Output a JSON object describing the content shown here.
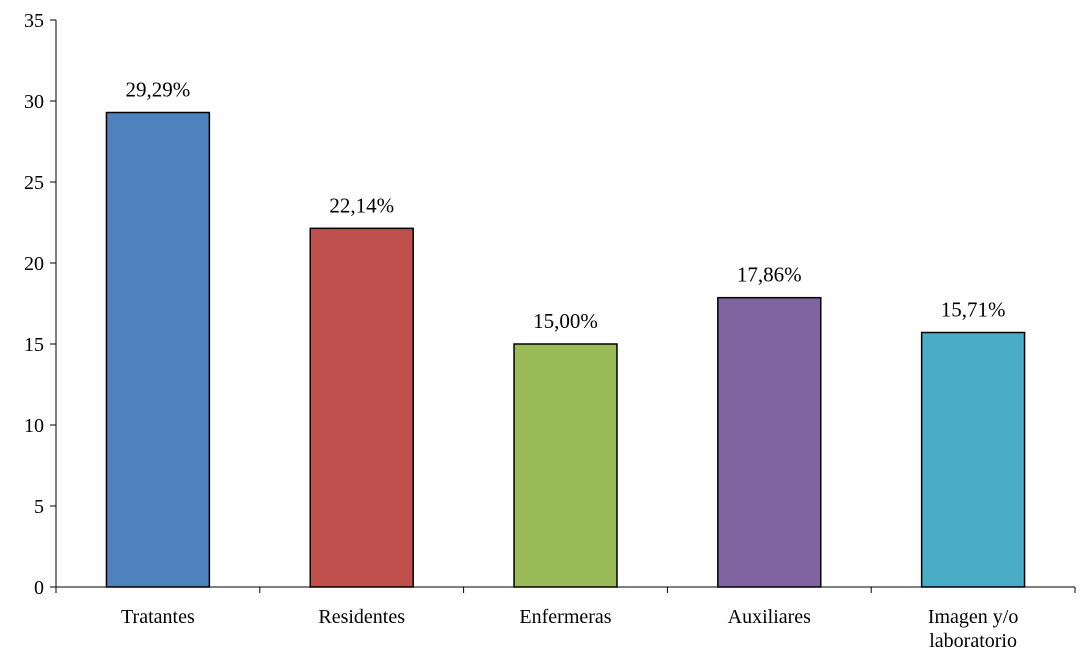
{
  "chart_data": {
    "type": "bar",
    "categories": [
      "Tratantes",
      "Residentes",
      "Enfermeras",
      "Auxiliares",
      "Imagen y/o laboratorio"
    ],
    "category_lines": [
      [
        "Tratantes"
      ],
      [
        "Residentes"
      ],
      [
        "Enfermeras"
      ],
      [
        "Auxiliares"
      ],
      [
        "Imagen y/o",
        "laboratorio"
      ]
    ],
    "values": [
      29.29,
      22.14,
      15.0,
      17.86,
      15.71
    ],
    "data_labels": [
      "29,29%",
      "22,14%",
      "15,00%",
      "17,86%",
      "15,71%"
    ],
    "colors": [
      "#4f81bd",
      "#c0504d",
      "#9bbb59",
      "#8064a2",
      "#4bacc6"
    ],
    "ylim": [
      0,
      35
    ],
    "yticks": [
      0,
      5,
      10,
      15,
      20,
      25,
      30,
      35
    ],
    "title": "",
    "xlabel": "",
    "ylabel": "",
    "grid": false,
    "legend": "none"
  }
}
